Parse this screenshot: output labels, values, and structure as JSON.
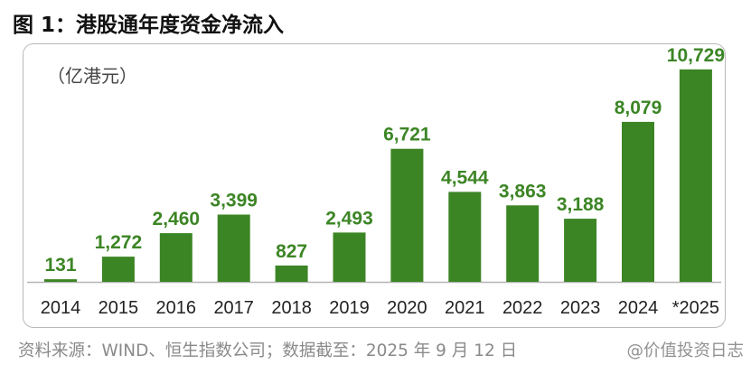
{
  "title": "图 1：港股通年度资金净流入",
  "unit_label": "（亿港元）",
  "source": "资料来源：WIND、恒生指数公司；数据截至：2025 年 9 月 12 日",
  "watermark": "@价值投资日志",
  "colors": {
    "bar": "#3c8525",
    "label": "#3c8525",
    "axis_text": "#222222",
    "baseline": "#b5b5b5"
  },
  "chart_data": {
    "type": "bar",
    "title": "",
    "xlabel": "",
    "ylabel": "",
    "ylim": [
      0,
      12500
    ],
    "grid": false,
    "categories": [
      "2014",
      "2015",
      "2016",
      "2017",
      "2018",
      "2019",
      "2020",
      "2021",
      "2022",
      "2023",
      "2024",
      "*2025"
    ],
    "values": [
      131,
      1272,
      2460,
      3399,
      827,
      2493,
      6721,
      4544,
      3863,
      3188,
      8079,
      10729
    ],
    "data_labels": [
      "131",
      "1,272",
      "2,460",
      "3,399",
      "827",
      "2,493",
      "6,721",
      "4,544",
      "3,863",
      "3,188",
      "8,079",
      "10,729"
    ]
  }
}
